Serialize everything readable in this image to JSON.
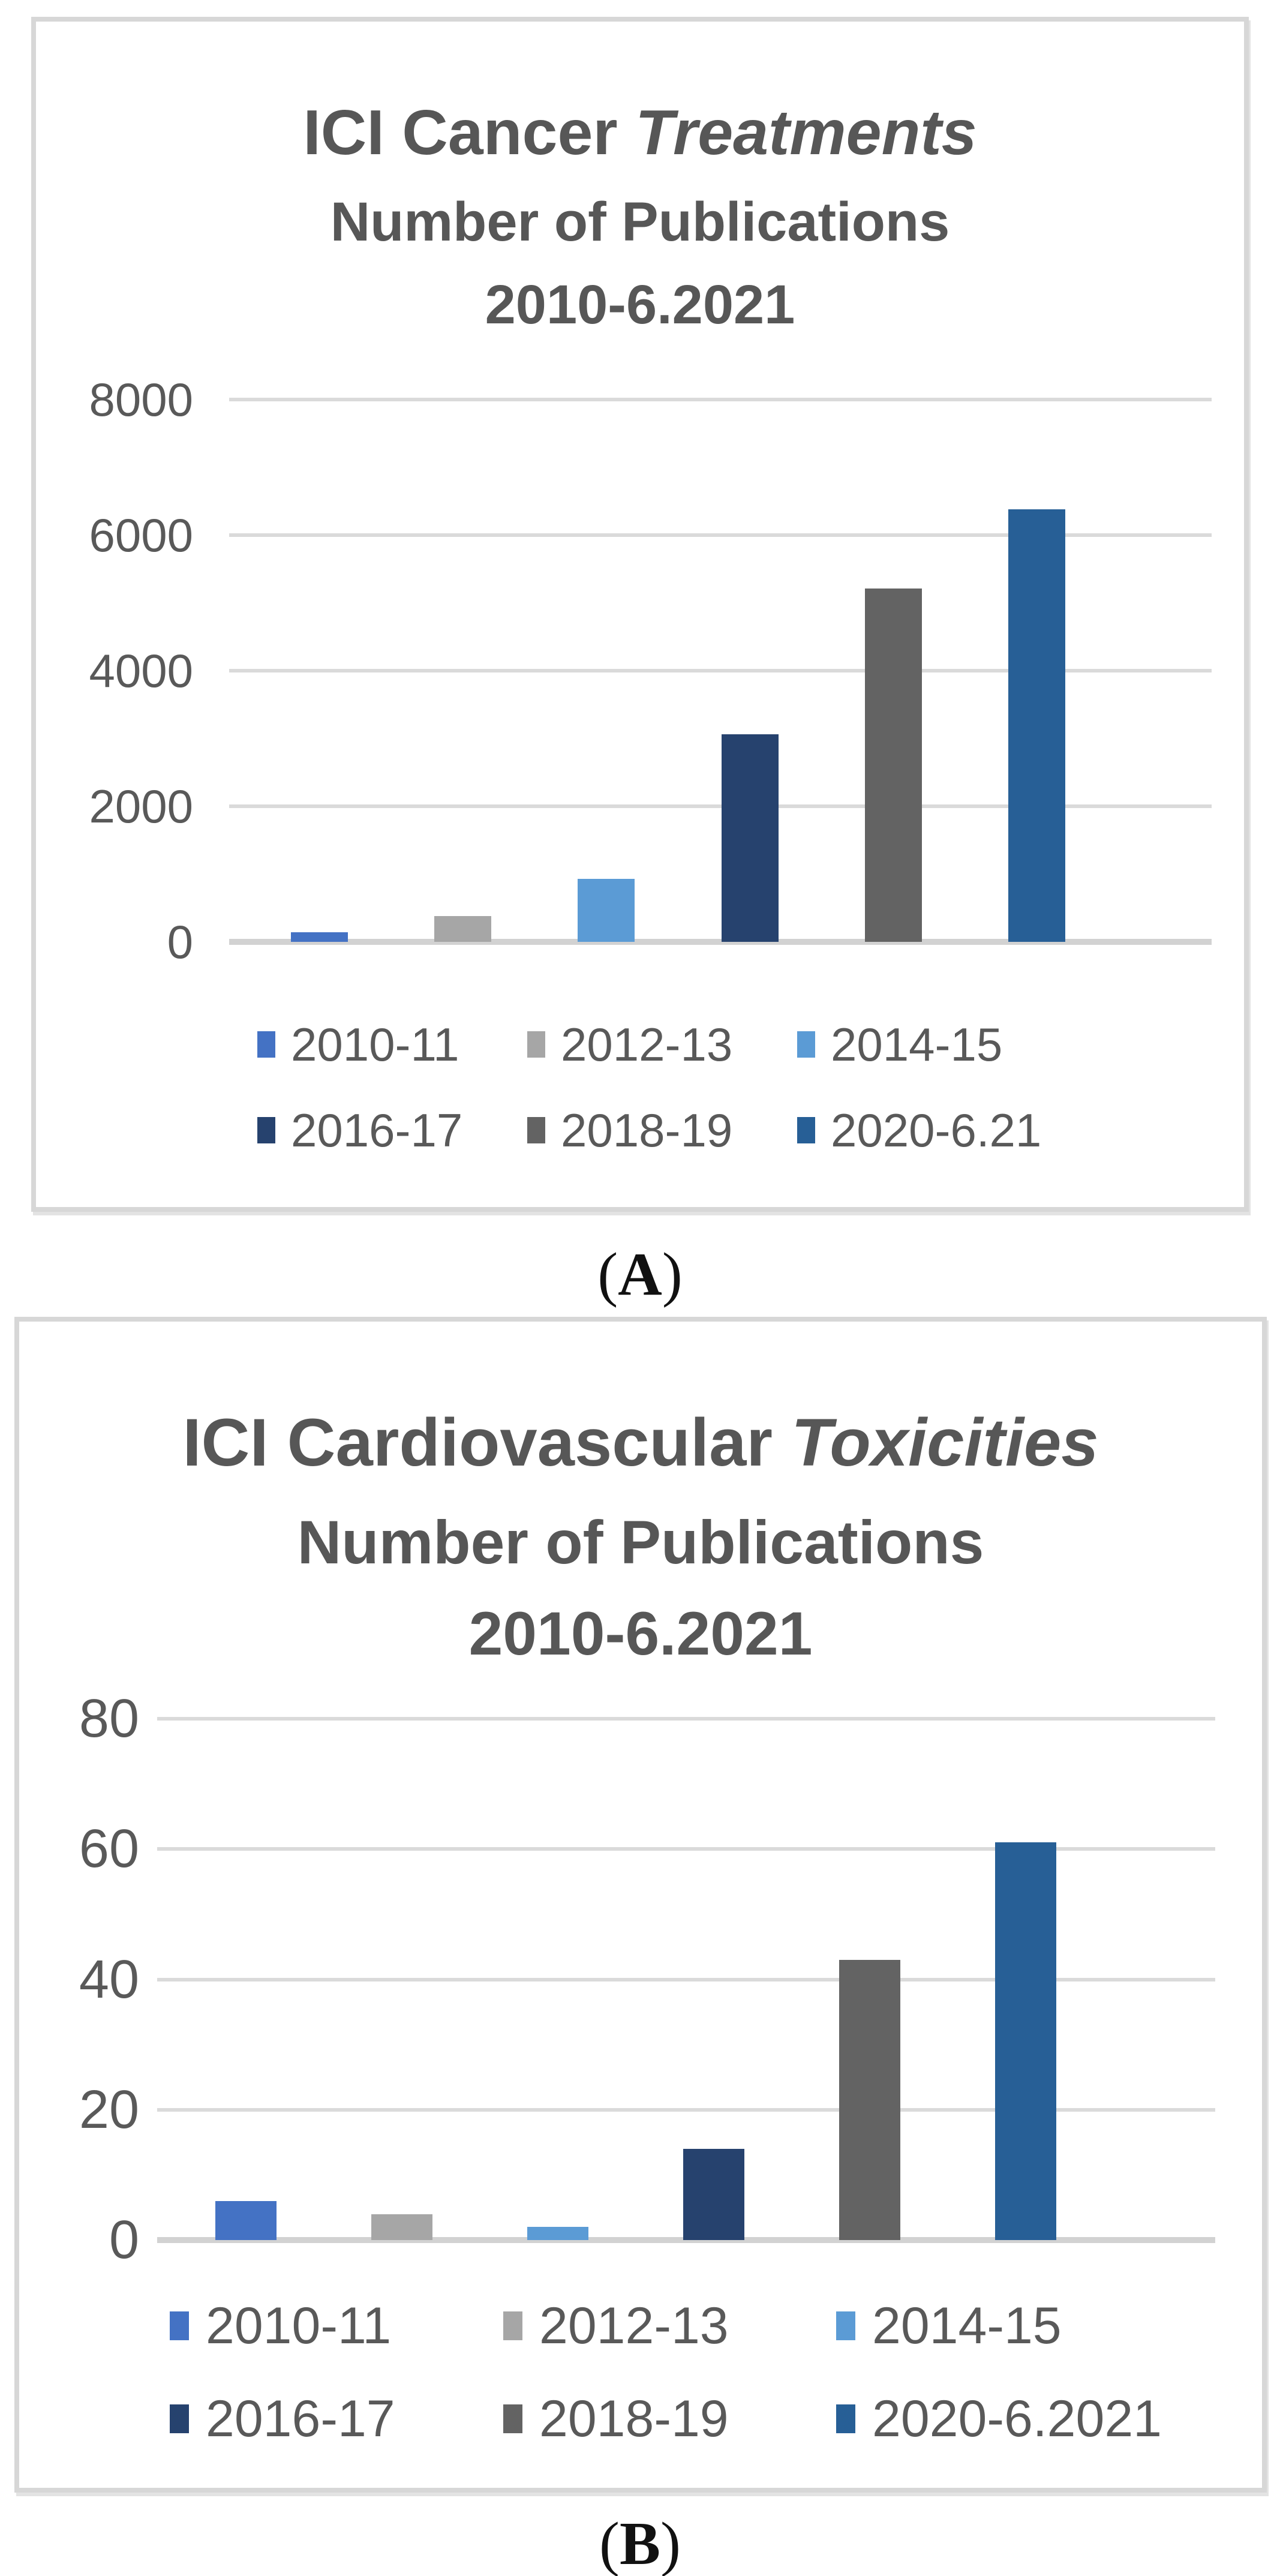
{
  "style": {
    "text_color": "#595959",
    "title_color": "#575757",
    "panel_border_color": "#D7D7D7",
    "grid_color": "#DADADA",
    "baseline_color": "#D2D2D2"
  },
  "captions": [
    {
      "open": "(",
      "letter": "A",
      "close": ")"
    },
    {
      "open": "(",
      "letter": "B",
      "close": ")"
    }
  ],
  "chart_data": [
    {
      "type": "bar",
      "title_main_regular": "ICI Cancer ",
      "title_main_italic": "Treatments",
      "subtitle1": "Number of Publications",
      "subtitle2": "2010-6.2021",
      "categories": [
        "2010-11",
        "2012-13",
        "2014-15",
        "2016-17",
        "2018-19",
        "2020-6.21"
      ],
      "values": [
        140,
        380,
        930,
        3060,
        5210,
        6380
      ],
      "colors": [
        "#4472C4",
        "#A6A6A6",
        "#5B9BD5",
        "#26426E",
        "#636363",
        "#275F96"
      ],
      "ylim": [
        0,
        8000
      ],
      "yticks_top_down": [
        8000,
        6000,
        4000,
        2000,
        0
      ],
      "grid": true,
      "legend_position": "bottom",
      "legend_rows": [
        [
          "2010-11",
          "2012-13",
          "2014-15"
        ],
        [
          "2016-17",
          "2018-19",
          "2020-6.21"
        ]
      ],
      "xlabel": "",
      "ylabel": ""
    },
    {
      "type": "bar",
      "title_main_regular": "ICI Cardiovascular ",
      "title_main_italic": "Toxicities",
      "subtitle1": "Number of Publications",
      "subtitle2": "2010-6.2021",
      "categories": [
        "2010-11",
        "2012-13",
        "2014-15",
        "2016-17",
        "2018-19",
        "2020-6.2021"
      ],
      "values": [
        6,
        4,
        2,
        14,
        43,
        61
      ],
      "colors": [
        "#4472C4",
        "#A6A6A6",
        "#5B9BD5",
        "#26426E",
        "#636363",
        "#275F96"
      ],
      "ylim": [
        0,
        80
      ],
      "yticks_top_down": [
        80,
        60,
        40,
        20,
        0
      ],
      "grid": true,
      "legend_position": "bottom",
      "legend_rows": [
        [
          "2010-11",
          "2012-13",
          "2014-15"
        ],
        [
          "2016-17",
          "2018-19",
          "2020-6.2021"
        ]
      ],
      "xlabel": "",
      "ylabel": ""
    }
  ]
}
